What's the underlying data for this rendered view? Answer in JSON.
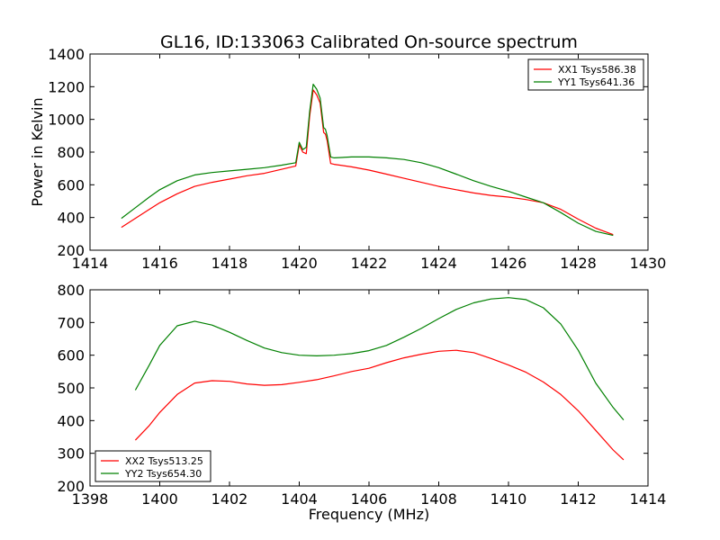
{
  "figure": {
    "title": "GL16, ID:133063 Calibrated On-source spectrum",
    "xlabel": "Frequency (MHz)"
  },
  "colors": {
    "red": "#ff0000",
    "green": "#008000",
    "axes": "#000000",
    "background": "#ffffff"
  },
  "chart_data": [
    {
      "type": "line",
      "panel": "top",
      "title": "GL16, ID:133063 Calibrated On-source spectrum",
      "xlabel": "",
      "ylabel": "Power in Kelvin",
      "xlim": [
        1414,
        1430
      ],
      "ylim": [
        200,
        1400
      ],
      "xticks": [
        1414,
        1416,
        1418,
        1420,
        1422,
        1424,
        1426,
        1428,
        1430
      ],
      "yticks": [
        200,
        400,
        600,
        800,
        1000,
        1200,
        1400
      ],
      "grid": false,
      "legend_position": "top-right",
      "series": [
        {
          "name": "XX1 Tsys586.38",
          "color": "#ff0000",
          "x": [
            1414.9,
            1415.3,
            1415.7,
            1416.0,
            1416.5,
            1417.0,
            1417.5,
            1418.0,
            1418.5,
            1419.0,
            1419.5,
            1419.9,
            1420.0,
            1420.1,
            1420.2,
            1420.3,
            1420.4,
            1420.5,
            1420.6,
            1420.7,
            1420.75,
            1420.8,
            1420.9,
            1421.0,
            1421.5,
            1422.0,
            1422.5,
            1423.0,
            1423.5,
            1424.0,
            1424.5,
            1425.0,
            1425.5,
            1426.0,
            1426.5,
            1427.0,
            1427.5,
            1428.0,
            1428.5,
            1429.0
          ],
          "y": [
            340,
            395,
            450,
            490,
            545,
            590,
            615,
            635,
            655,
            670,
            695,
            715,
            845,
            800,
            790,
            1020,
            1180,
            1150,
            1100,
            920,
            910,
            870,
            730,
            725,
            710,
            690,
            665,
            640,
            615,
            590,
            570,
            550,
            535,
            525,
            510,
            490,
            450,
            390,
            335,
            295
          ]
        },
        {
          "name": "YY1 Tsys641.36",
          "color": "#008000",
          "x": [
            1414.9,
            1415.3,
            1415.7,
            1416.0,
            1416.5,
            1417.0,
            1417.5,
            1418.0,
            1418.5,
            1419.0,
            1419.5,
            1419.9,
            1420.0,
            1420.1,
            1420.2,
            1420.3,
            1420.4,
            1420.5,
            1420.6,
            1420.7,
            1420.75,
            1420.8,
            1420.9,
            1421.0,
            1421.5,
            1422.0,
            1422.5,
            1423.0,
            1423.5,
            1424.0,
            1424.5,
            1425.0,
            1425.5,
            1426.0,
            1426.5,
            1427.0,
            1427.5,
            1428.0,
            1428.5,
            1429.0
          ],
          "y": [
            395,
            460,
            525,
            570,
            625,
            660,
            675,
            685,
            695,
            705,
            720,
            735,
            860,
            815,
            830,
            1050,
            1215,
            1185,
            1130,
            950,
            940,
            900,
            770,
            765,
            770,
            770,
            765,
            755,
            735,
            705,
            665,
            625,
            590,
            560,
            525,
            490,
            430,
            365,
            315,
            290
          ]
        }
      ]
    },
    {
      "type": "line",
      "panel": "bottom",
      "title": "",
      "xlabel": "Frequency (MHz)",
      "ylabel": "",
      "xlim": [
        1398,
        1414
      ],
      "ylim": [
        200,
        800
      ],
      "xticks": [
        1398,
        1400,
        1402,
        1404,
        1406,
        1408,
        1410,
        1412,
        1414
      ],
      "yticks": [
        200,
        300,
        400,
        500,
        600,
        700,
        800
      ],
      "grid": false,
      "legend_position": "bottom-left",
      "series": [
        {
          "name": "XX2 Tsys513.25",
          "color": "#ff0000",
          "x": [
            1399.3,
            1399.7,
            1400.0,
            1400.5,
            1401.0,
            1401.5,
            1402.0,
            1402.5,
            1403.0,
            1403.5,
            1404.0,
            1404.5,
            1405.0,
            1405.5,
            1406.0,
            1406.5,
            1407.0,
            1407.5,
            1408.0,
            1408.5,
            1409.0,
            1409.5,
            1410.0,
            1410.5,
            1411.0,
            1411.5,
            1412.0,
            1412.5,
            1413.0,
            1413.3
          ],
          "y": [
            340,
            385,
            425,
            480,
            515,
            522,
            520,
            512,
            508,
            510,
            517,
            525,
            537,
            550,
            560,
            577,
            592,
            603,
            612,
            615,
            608,
            590,
            570,
            548,
            518,
            480,
            430,
            370,
            310,
            280
          ]
        },
        {
          "name": "YY2 Tsys654.30",
          "color": "#008000",
          "x": [
            1399.3,
            1399.7,
            1400.0,
            1400.5,
            1401.0,
            1401.5,
            1402.0,
            1402.5,
            1403.0,
            1403.5,
            1404.0,
            1404.5,
            1405.0,
            1405.5,
            1406.0,
            1406.5,
            1407.0,
            1407.5,
            1408.0,
            1408.5,
            1409.0,
            1409.5,
            1410.0,
            1410.5,
            1411.0,
            1411.5,
            1412.0,
            1412.5,
            1413.0,
            1413.3
          ],
          "y": [
            493,
            570,
            630,
            690,
            704,
            692,
            670,
            645,
            622,
            608,
            600,
            598,
            600,
            605,
            614,
            630,
            655,
            682,
            712,
            740,
            760,
            772,
            776,
            770,
            745,
            695,
            615,
            515,
            440,
            402
          ]
        }
      ]
    }
  ]
}
